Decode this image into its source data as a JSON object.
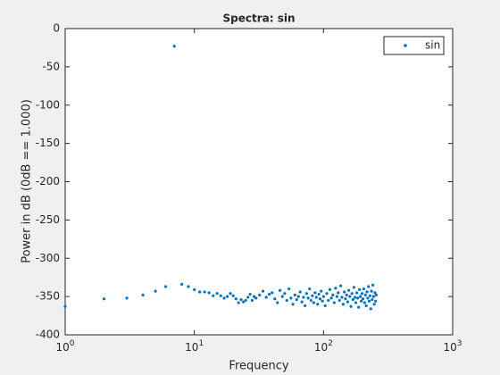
{
  "chart_data": {
    "type": "scatter",
    "title": "Spectra: sin",
    "xlabel": "Frequency",
    "ylabel": "Power in dB (0dB == 1.000)",
    "xscale": "log",
    "legend": "northeast",
    "box": true,
    "xlim": [
      1,
      1000
    ],
    "xticks": [
      {
        "value": 1,
        "label": "10^0"
      },
      {
        "value": 10,
        "label": "10^1"
      },
      {
        "value": 100,
        "label": "10^2"
      },
      {
        "value": 1000,
        "label": "10^3"
      }
    ],
    "ylim": [
      -400,
      0
    ],
    "yticks": [
      -400,
      -350,
      -300,
      -250,
      -200,
      -150,
      -100,
      -50,
      0
    ],
    "series": [
      {
        "name": "sin",
        "color": "#0072bd",
        "x": [
          1,
          2,
          3,
          4,
          5,
          6,
          7,
          8,
          9,
          10,
          11,
          12,
          13,
          14,
          15,
          16,
          17,
          18,
          19,
          20,
          21,
          22,
          23,
          24,
          25,
          26,
          27,
          28,
          29,
          30,
          32,
          34,
          36,
          38,
          40,
          42,
          44,
          46,
          48,
          50,
          52,
          54,
          56,
          58,
          60,
          62,
          64,
          66,
          68,
          70,
          72,
          74,
          76,
          78,
          80,
          82,
          84,
          86,
          88,
          90,
          92,
          94,
          96,
          98,
          100,
          103,
          106,
          109,
          112,
          115,
          118,
          121,
          124,
          127,
          130,
          133,
          136,
          139,
          142,
          145,
          148,
          151,
          154,
          157,
          160,
          163,
          166,
          169,
          172,
          175,
          178,
          181,
          184,
          187,
          190,
          193,
          196,
          199,
          202,
          205,
          208,
          211,
          214,
          217,
          220,
          223,
          226,
          229,
          232,
          235,
          238,
          241,
          244,
          247,
          250,
          253,
          256
        ],
        "values": [
          -363,
          -353,
          -352,
          -348,
          -343,
          -337,
          -23,
          -334,
          -337,
          -341,
          -344,
          -344,
          -345,
          -349,
          -346,
          -349,
          -352,
          -350,
          -346,
          -349,
          -353,
          -358,
          -354,
          -357,
          -355,
          -351,
          -347,
          -355,
          -350,
          -352,
          -348,
          -343,
          -351,
          -347,
          -345,
          -353,
          -358,
          -342,
          -350,
          -346,
          -355,
          -340,
          -352,
          -360,
          -348,
          -354,
          -350,
          -344,
          -357,
          -351,
          -362,
          -346,
          -352,
          -340,
          -355,
          -349,
          -358,
          -345,
          -351,
          -360,
          -347,
          -353,
          -343,
          -356,
          -350,
          -362,
          -346,
          -355,
          -341,
          -352,
          -348,
          -358,
          -339,
          -350,
          -345,
          -355,
          -336,
          -351,
          -360,
          -344,
          -353,
          -348,
          -357,
          -342,
          -350,
          -363,
          -346,
          -354,
          -338,
          -351,
          -358,
          -345,
          -352,
          -364,
          -341,
          -350,
          -356,
          -346,
          -353,
          -340,
          -358,
          -348,
          -362,
          -344,
          -352,
          -337,
          -356,
          -349,
          -366,
          -343,
          -354,
          -335,
          -350,
          -360,
          -345,
          -356,
          -348
        ]
      }
    ]
  }
}
